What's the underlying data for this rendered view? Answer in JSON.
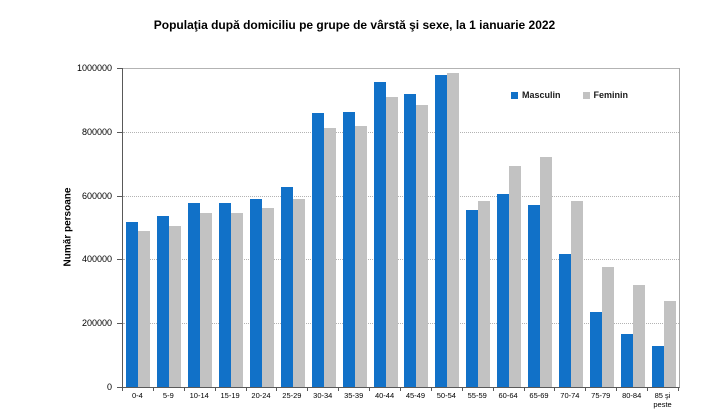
{
  "title": "Populaţia după domiciliu pe grupe de vârstă şi sexe, la 1 ianuarie 2022",
  "chart_data": {
    "type": "bar",
    "title": "Populaţia după domiciliu pe grupe de vârstă şi sexe, la 1 ianuarie 2022",
    "xlabel": "",
    "ylabel": "Număr persoane",
    "ylim": [
      0,
      1000000
    ],
    "yticks": [
      0,
      200000,
      400000,
      600000,
      800000,
      1000000
    ],
    "ytick_labels": [
      "0",
      "200000",
      "400000",
      "600000",
      "800000",
      "1000000"
    ],
    "grid": "horizontal-dotted",
    "legend_position": "top-right-inside",
    "background_color": "#FFFFFF",
    "axis_color": "#595959",
    "gridline_color": "#B3B3B3",
    "categories": [
      "0-4",
      "5-9",
      "10-14",
      "15-19",
      "20-24",
      "25-29",
      "30-34",
      "35-39",
      "40-44",
      "45-49",
      "50-54",
      "55-59",
      "60-64",
      "65-69",
      "70-74",
      "75-79",
      "80-84",
      "85 şi peste"
    ],
    "series": [
      {
        "name": "Masculin",
        "color": "#1171C8",
        "values": [
          517000,
          537000,
          578000,
          577000,
          590000,
          626000,
          858000,
          863000,
          955000,
          917000,
          978000,
          556000,
          604000,
          569000,
          418000,
          236000,
          166000,
          127000
        ]
      },
      {
        "name": "Feminin",
        "color": "#C2C2C2",
        "values": [
          490000,
          506000,
          547000,
          545000,
          560000,
          590000,
          813000,
          818000,
          910000,
          884000,
          984000,
          583000,
          694000,
          720000,
          583000,
          377000,
          320000,
          271000
        ]
      }
    ]
  }
}
